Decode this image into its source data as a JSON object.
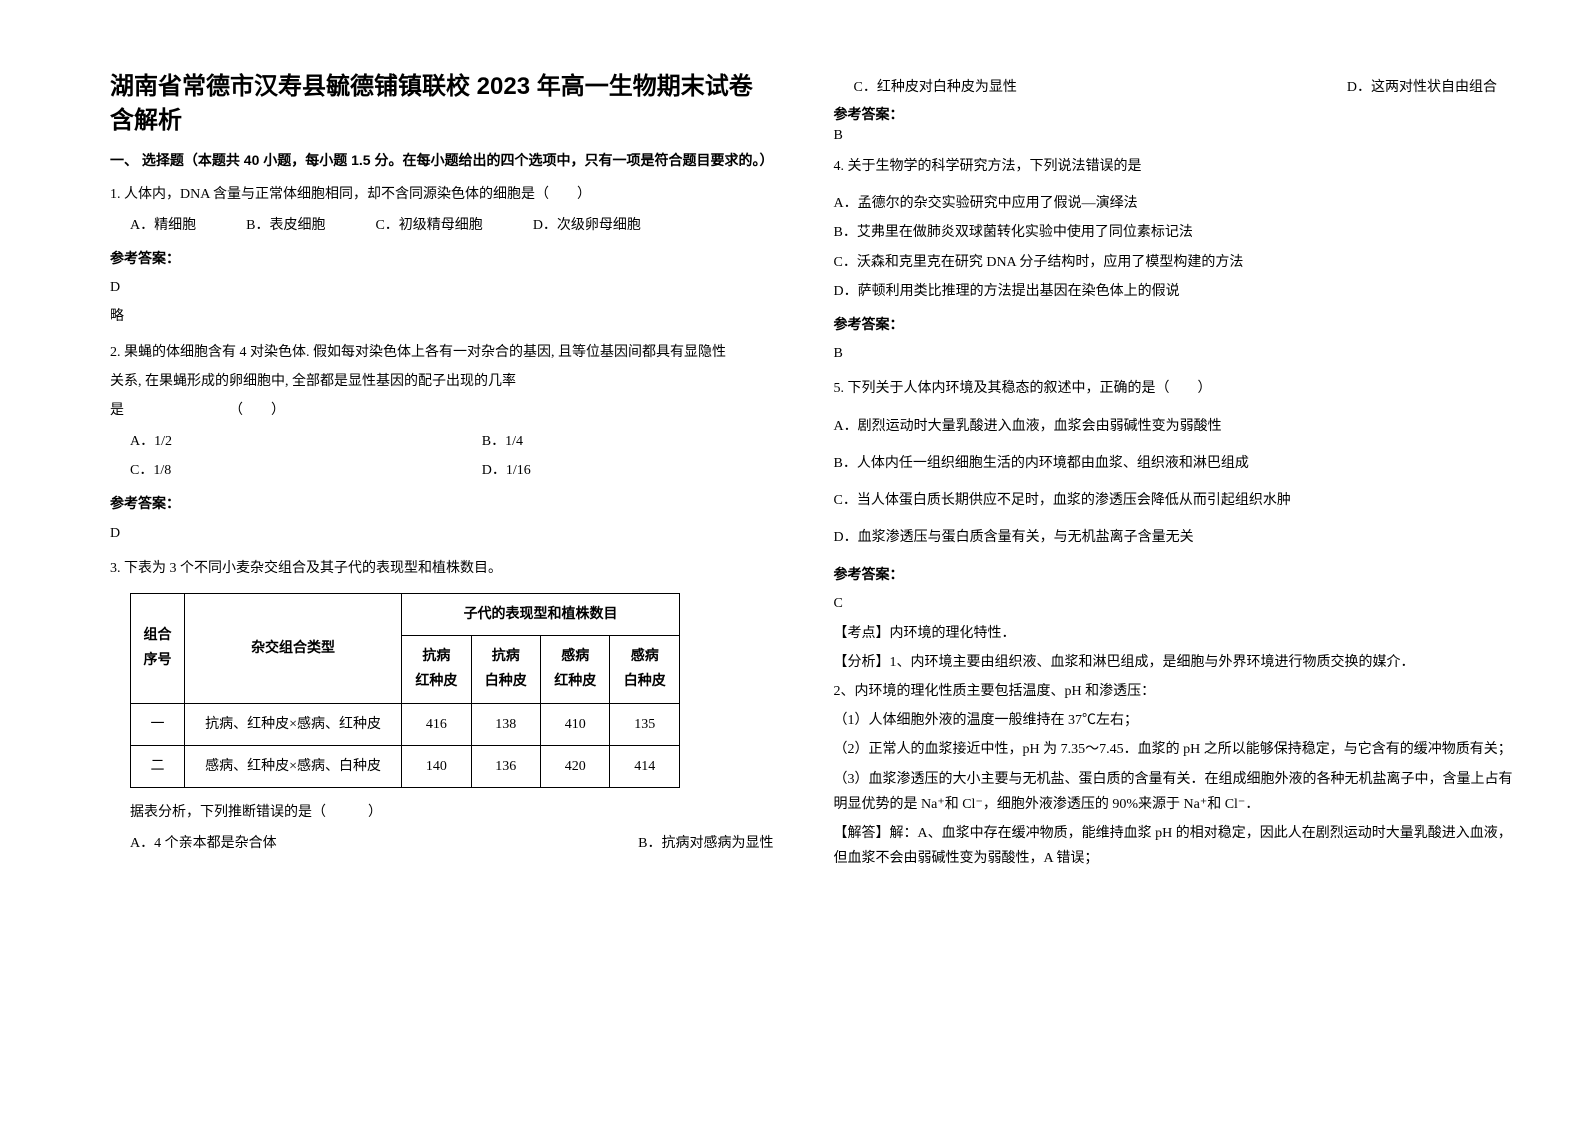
{
  "title_line1": "湖南省常德市汉寿县毓德铺镇联校 2023 年高一生物期末试卷",
  "title_line2": "含解析",
  "section1_heading": "一、 选择题（本题共 40 小题，每小题 1.5 分。在每小题给出的四个选项中，只有一项是符合题目要求的。）",
  "q1": {
    "stem": "1. 人体内，DNA 含量与正常体细胞相同，却不含同源染色体的细胞是（　　）",
    "opts": [
      "A．精细胞",
      "B．表皮细胞",
      "C．初级精母细胞",
      "D．次级卵母细胞"
    ],
    "ans_label": "参考答案：",
    "ans": "D",
    "note": "略"
  },
  "q2": {
    "stem1": "2. 果蝇的体细胞含有 4 对染色体. 假如每对染色体上各有一对杂合的基因, 且等位基因间都具有显隐性",
    "stem2": "关系, 在果蝇形成的卵细胞中, 全部都是显性基因的配子出现的几率",
    "stem3": "是　　　　　　　　（　　）",
    "opts": [
      "A．1/2",
      "B．1/4",
      "C．1/8",
      "D．1/16"
    ],
    "ans_label": "参考答案：",
    "ans": "D"
  },
  "q3": {
    "stem": "3. 下表为 3 个不同小麦杂交组合及其子代的表现型和植株数目。",
    "table": {
      "h1": "组合序号",
      "h2": "杂交组合类型",
      "h3": "子代的表现型和植株数目",
      "sub": [
        "抗病红种皮",
        "抗病白种皮",
        "感病红种皮",
        "感病白种皮"
      ],
      "rows": [
        {
          "n": "一",
          "type": "抗病、红种皮×感病、红种皮",
          "v": [
            "416",
            "138",
            "410",
            "135"
          ]
        },
        {
          "n": "二",
          "type": "感病、红种皮×感病、白种皮",
          "v": [
            "140",
            "136",
            "420",
            "414"
          ]
        }
      ]
    },
    "caption": "据表分析，下列推断错误的是（　　　）",
    "opts": [
      "A．4 个亲本都是杂合体",
      "B．抗病对感病为显性",
      "C．红种皮对白种皮为显性",
      "D．这两对性状自由组合"
    ],
    "ans_label": "参考答案：",
    "ans": "B"
  },
  "q4": {
    "stem": "4. 关于生物学的科学研究方法，下列说法错误的是",
    "opts": [
      "A．孟德尔的杂交实验研究中应用了假说—演绎法",
      "B．艾弗里在做肺炎双球菌转化实验中使用了同位素标记法",
      "C．沃森和克里克在研究 DNA 分子结构时，应用了模型构建的方法",
      "D．萨顿利用类比推理的方法提出基因在染色体上的假说"
    ],
    "ans_label": "参考答案：",
    "ans": "B"
  },
  "q5": {
    "stem": "5. 下列关于人体内环境及其稳态的叙述中，正确的是（　　）",
    "opts": [
      "A．剧烈运动时大量乳酸进入血液，血浆会由弱碱性变为弱酸性",
      "B．人体内任一组织细胞生活的内环境都由血浆、组织液和淋巴组成",
      "C．当人体蛋白质长期供应不足时，血浆的渗透压会降低从而引起组织水肿",
      "D．血浆渗透压与蛋白质含量有关，与无机盐离子含量无关"
    ],
    "ans_label": "参考答案：",
    "ans": "C",
    "kaodian": "【考点】内环境的理化特性．",
    "fenxi": "【分析】1、内环境主要由组织液、血浆和淋巴组成，是细胞与外界环境进行物质交换的媒介．",
    "p2": "2、内环境的理化性质主要包括温度、pH 和渗透压：",
    "p3": "（1）人体细胞外液的温度一般维持在 37℃左右；",
    "p4": "（2）正常人的血浆接近中性，pH 为 7.35～7.45．血浆的 pH 之所以能够保持稳定，与它含有的缓冲物质有关；",
    "p5": "（3）血浆渗透压的大小主要与无机盐、蛋白质的含量有关．在组成细胞外液的各种无机盐离子中，含量上占有明显优势的是 Na⁺和 Cl⁻，细胞外液渗透压的 90%来源于 Na⁺和 Cl⁻．",
    "jieda": "【解答】解：A、血浆中存在缓冲物质，能维持血浆 pH 的相对稳定，因此人在剧烈运动时大量乳酸进入血液，但血浆不会由弱碱性变为弱酸性，A 错误；"
  }
}
